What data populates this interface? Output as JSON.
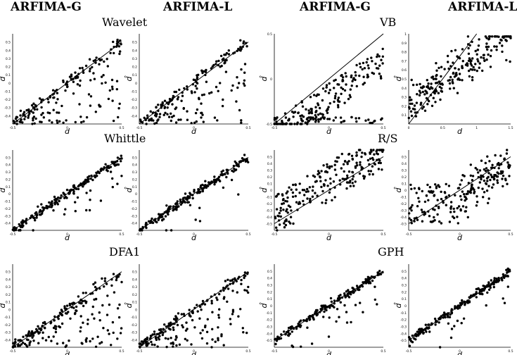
{
  "column_headers": [
    "ARFIMA-G",
    "ARFIMA-L",
    "ARFIMA-G",
    "ARFIMA-L"
  ],
  "axis_labels": {
    "x": "d",
    "y": "d̂"
  },
  "chart_data": [
    {
      "type": "scatter",
      "estimator": "Wavelet",
      "model": "ARFIMA-G",
      "title": "Wavelet",
      "xlim": [
        -0.5,
        0.5
      ],
      "ylim": [
        -0.5,
        0.6
      ],
      "xticks": [
        "-0.5",
        "0",
        "0.5"
      ],
      "yticks": [
        "-0.4",
        "-0.3",
        "-0.2",
        "-0.1",
        "0",
        "0.1",
        "0.2",
        "0.3",
        "0.4",
        "0.5"
      ],
      "pattern": "triangle",
      "points": 180,
      "seed": 11
    },
    {
      "type": "scatter",
      "estimator": "Wavelet",
      "model": "ARFIMA-L",
      "title": "",
      "xlim": [
        -0.5,
        0.5
      ],
      "ylim": [
        -0.5,
        0.6
      ],
      "xticks": [
        "-0.5",
        "0",
        "0.5"
      ],
      "yticks": [
        "-0.4",
        "-0.3",
        "-0.2",
        "-0.1",
        "0",
        "0.1",
        "0.2",
        "0.3",
        "0.4",
        "0.5"
      ],
      "pattern": "triangle",
      "points": 180,
      "seed": 12
    },
    {
      "type": "scatter",
      "estimator": "VB",
      "model": "ARFIMA-G",
      "title": "VB",
      "xlim": [
        -0.5,
        0.5
      ],
      "ylim": [
        -0.5,
        0.5
      ],
      "xticks": [
        "-0.5",
        "0",
        "0.5"
      ],
      "yticks": [
        "-0.5",
        "0",
        "0.5"
      ],
      "pattern": "vb",
      "points": 220,
      "seed": 13
    },
    {
      "type": "scatter",
      "estimator": "VB",
      "model": "ARFIMA-L",
      "title": "",
      "xlim": [
        0,
        1.5
      ],
      "ylim": [
        0,
        1
      ],
      "xticks": [
        "0",
        "0.5",
        "1",
        "1.5"
      ],
      "yticks": [
        "0.1",
        "0.2",
        "0.3",
        "0.4",
        "0.5",
        "0.6",
        "0.7",
        "0.8",
        "0.9",
        "1"
      ],
      "pattern": "vbl",
      "points": 220,
      "seed": 14
    },
    {
      "type": "scatter",
      "estimator": "Whittle",
      "model": "ARFIMA-G",
      "title": "Whittle",
      "xlim": [
        -0.5,
        0.5
      ],
      "ylim": [
        -0.5,
        0.6
      ],
      "xticks": [
        "-0.5",
        "0",
        "0.5"
      ],
      "yticks": [
        "-0.4",
        "-0.3",
        "-0.2",
        "-0.1",
        "0",
        "0.1",
        "0.2",
        "0.3",
        "0.4",
        "0.5"
      ],
      "pattern": "tight",
      "points": 200,
      "seed": 21
    },
    {
      "type": "scatter",
      "estimator": "Whittle",
      "model": "ARFIMA-L",
      "title": "",
      "xlim": [
        -0.5,
        0.5
      ],
      "ylim": [
        -0.5,
        0.6
      ],
      "xticks": [
        "-0.5",
        "0",
        "0.5"
      ],
      "yticks": [
        "-0.4",
        "-0.3",
        "-0.2",
        "-0.1",
        "0",
        "0.1",
        "0.2",
        "0.3",
        "0.4",
        "0.5"
      ],
      "pattern": "tight",
      "points": 200,
      "seed": 22
    },
    {
      "type": "scatter",
      "estimator": "R/S",
      "model": "ARFIMA-G",
      "title": "R/S",
      "xlim": [
        -0.5,
        0.5
      ],
      "ylim": [
        -0.6,
        0.6
      ],
      "xticks": [
        "-0.5",
        "0",
        "0.5"
      ],
      "yticks": [
        "-0.5",
        "-0.4",
        "-0.3",
        "-0.2",
        "-0.1",
        "0",
        "0.1",
        "0.2",
        "0.3",
        "0.4",
        "0.5"
      ],
      "pattern": "rs",
      "points": 220,
      "seed": 23
    },
    {
      "type": "scatter",
      "estimator": "R/S",
      "model": "ARFIMA-L",
      "title": "",
      "xlim": [
        -0.5,
        0.5
      ],
      "ylim": [
        -0.6,
        0.6
      ],
      "xticks": [
        "-0.5",
        "0",
        "0.5"
      ],
      "yticks": [
        "-0.5",
        "-0.4",
        "-0.3",
        "-0.2",
        "-0.1",
        "0",
        "0.1",
        "0.2",
        "0.3",
        "0.4",
        "0.5"
      ],
      "pattern": "rsl",
      "points": 220,
      "seed": 24
    },
    {
      "type": "scatter",
      "estimator": "DFA1",
      "model": "ARFIMA-G",
      "title": "DFA1",
      "xlim": [
        -0.5,
        0.5
      ],
      "ylim": [
        -0.5,
        0.6
      ],
      "xticks": [
        "-0.5",
        "0",
        "0.5"
      ],
      "yticks": [
        "-0.4",
        "-0.3",
        "-0.2",
        "-0.1",
        "0",
        "0.1",
        "0.2",
        "0.3",
        "0.4",
        "0.5"
      ],
      "pattern": "dfa",
      "points": 200,
      "seed": 31
    },
    {
      "type": "scatter",
      "estimator": "DFA1",
      "model": "ARFIMA-L",
      "title": "",
      "xlim": [
        -0.5,
        0.5
      ],
      "ylim": [
        -0.5,
        0.6
      ],
      "xticks": [
        "-0.5",
        "0",
        "0.5"
      ],
      "yticks": [
        "-0.4",
        "-0.3",
        "-0.2",
        "-0.1",
        "0",
        "0.1",
        "0.2",
        "0.3",
        "0.4",
        "0.5"
      ],
      "pattern": "dfa",
      "points": 200,
      "seed": 32
    },
    {
      "type": "scatter",
      "estimator": "GPH",
      "model": "ARFIMA-G",
      "title": "GPH",
      "xlim": [
        -0.5,
        0.5
      ],
      "ylim": [
        -0.6,
        0.6
      ],
      "xticks": [
        "-0.5",
        "0",
        "0.5"
      ],
      "yticks": [
        "-0.5",
        "-0.4",
        "-0.3",
        "-0.2",
        "-0.1",
        "0",
        "0.1",
        "0.2",
        "0.3",
        "0.4",
        "0.5"
      ],
      "pattern": "tight",
      "points": 200,
      "seed": 33
    },
    {
      "type": "scatter",
      "estimator": "GPH",
      "model": "ARFIMA-L",
      "title": "",
      "xlim": [
        -0.5,
        0.5
      ],
      "ylim": [
        -0.6,
        0.6
      ],
      "xticks": [
        "-0.5",
        "0",
        "0.5"
      ],
      "yticks": [
        "-0.5",
        "-0.4",
        "-0.3",
        "-0.2",
        "-0.1",
        "0",
        "0.1",
        "0.2",
        "0.3",
        "0.4",
        "0.5"
      ],
      "pattern": "tight",
      "points": 200,
      "seed": 34
    }
  ]
}
